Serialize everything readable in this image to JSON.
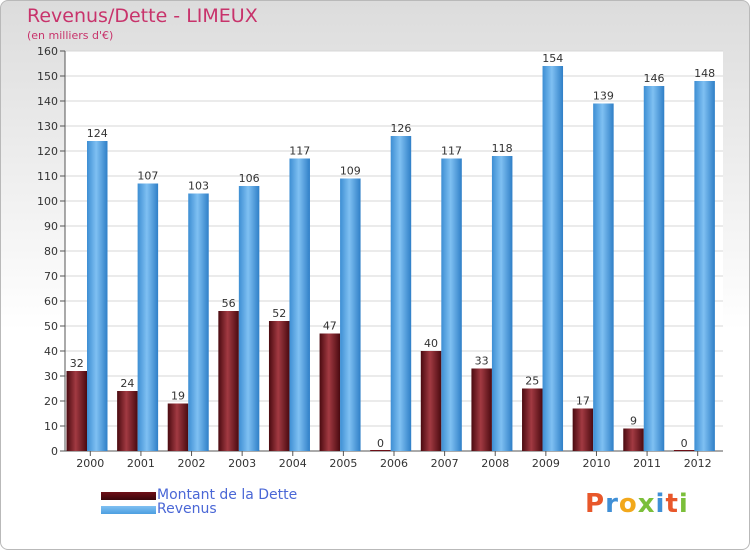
{
  "chart_data": {
    "type": "bar",
    "title": "Revenus/Dette - LIMEUX",
    "subtitle": "(en milliers d'€)",
    "categories": [
      "2000",
      "2001",
      "2002",
      "2003",
      "2004",
      "2005",
      "2006",
      "2007",
      "2008",
      "2009",
      "2010",
      "2011",
      "2012"
    ],
    "series": [
      {
        "name": "Montant de la Dette",
        "color": "#6e0f17",
        "values": [
          32,
          24,
          19,
          56,
          52,
          47,
          0,
          40,
          33,
          25,
          17,
          9,
          0
        ]
      },
      {
        "name": "Revenus",
        "color": "#4d9fe0",
        "values": [
          124,
          107,
          103,
          106,
          117,
          109,
          126,
          117,
          118,
          154,
          139,
          146,
          148
        ]
      }
    ],
    "ylim": [
      0,
      160
    ],
    "yticks": [
      0,
      10,
      20,
      30,
      40,
      50,
      60,
      70,
      80,
      90,
      100,
      110,
      120,
      130,
      140,
      150,
      160
    ],
    "grid": true,
    "legend": "bottom-left"
  },
  "logo": {
    "letters": [
      "P",
      "r",
      "o",
      "x",
      "i",
      "t",
      "i"
    ],
    "colors": [
      "#e8572a",
      "#3f8fd6",
      "#f2a81c",
      "#7bbf3a",
      "#3f8fd6",
      "#e8572a",
      "#7bbf3a"
    ]
  }
}
